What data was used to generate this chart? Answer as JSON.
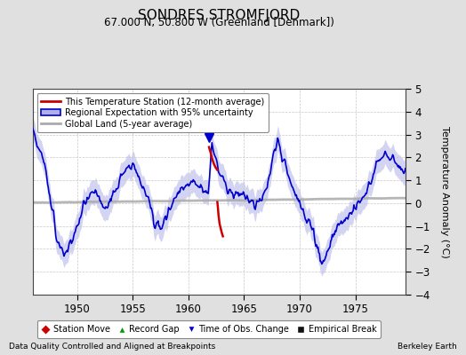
{
  "title": "SONDRES STROMFJORD",
  "subtitle": "67.000 N, 50.800 W (Greenland [Denmark])",
  "footer_left": "Data Quality Controlled and Aligned at Breakpoints",
  "footer_right": "Berkeley Earth",
  "ylabel": "Temperature Anomaly (°C)",
  "xlim": [
    1946.0,
    1979.5
  ],
  "ylim": [
    -4,
    5
  ],
  "yticks": [
    -4,
    -3,
    -2,
    -1,
    0,
    1,
    2,
    3,
    4,
    5
  ],
  "xticks": [
    1950,
    1955,
    1960,
    1965,
    1970,
    1975
  ],
  "bg_color": "#e0e0e0",
  "plot_bg_color": "#ffffff",
  "grid_color": "#c8c8c8",
  "blue_color": "#0000cd",
  "red_color": "#cc0000",
  "gray_color": "#aaaaaa",
  "fill_color": "#b0b0e8",
  "regional_key_years": [
    1946,
    1947,
    1947.5,
    1948.2,
    1948.8,
    1949.5,
    1950.0,
    1950.5,
    1951.0,
    1951.5,
    1952.0,
    1952.5,
    1953.0,
    1953.5,
    1954.0,
    1954.5,
    1955.0,
    1955.5,
    1956.0,
    1956.5,
    1957.0,
    1957.5,
    1958.0,
    1958.5,
    1959.0,
    1959.5,
    1960.0,
    1960.5,
    1961.0,
    1961.5,
    1961.8,
    1962.1,
    1962.5,
    1963.0,
    1963.5,
    1964.0,
    1964.5,
    1965.0,
    1965.5,
    1966.0,
    1966.5,
    1967.0,
    1967.5,
    1968.0,
    1968.5,
    1969.0,
    1969.5,
    1970.0,
    1970.5,
    1971.0,
    1971.5,
    1972.0,
    1972.5,
    1973.0,
    1973.5,
    1974.0,
    1974.5,
    1975.0,
    1975.5,
    1976.0,
    1976.5,
    1977.0,
    1977.5,
    1978.0,
    1978.5,
    1979.0
  ],
  "regional_key_vals": [
    3.3,
    1.8,
    0.5,
    -1.5,
    -2.3,
    -1.8,
    -1.0,
    -0.2,
    0.3,
    0.5,
    0.2,
    -0.2,
    0.1,
    0.4,
    1.2,
    1.6,
    1.7,
    1.3,
    0.6,
    0.0,
    -0.8,
    -1.1,
    -0.5,
    -0.1,
    0.4,
    0.7,
    0.8,
    0.9,
    0.7,
    0.5,
    0.6,
    2.5,
    1.8,
    1.2,
    0.6,
    0.3,
    0.5,
    0.3,
    0.1,
    -0.1,
    0.2,
    0.6,
    1.8,
    2.8,
    2.0,
    1.2,
    0.5,
    -0.1,
    -0.5,
    -1.0,
    -1.8,
    -2.6,
    -2.0,
    -1.5,
    -1.0,
    -0.6,
    -0.5,
    -0.3,
    0.2,
    0.5,
    1.0,
    1.8,
    2.2,
    2.0,
    1.8,
    1.5
  ],
  "red_seg1_years": [
    1961.85,
    1962.0,
    1962.15,
    1962.3,
    1962.45,
    1962.6
  ],
  "red_seg1_vals": [
    2.45,
    2.2,
    1.9,
    1.7,
    1.55,
    1.45
  ],
  "red_seg2_years": [
    1962.6,
    1962.65,
    1962.7,
    1962.8,
    1962.9,
    1963.0,
    1963.1
  ],
  "red_seg2_vals": [
    0.05,
    -0.2,
    -0.5,
    -0.9,
    -1.1,
    -1.3,
    -1.45
  ],
  "triangle_x": 1961.85,
  "triangle_y": 2.85,
  "noise_seed": 15,
  "noise_scale": 0.18,
  "uncertainty_base": 0.45
}
